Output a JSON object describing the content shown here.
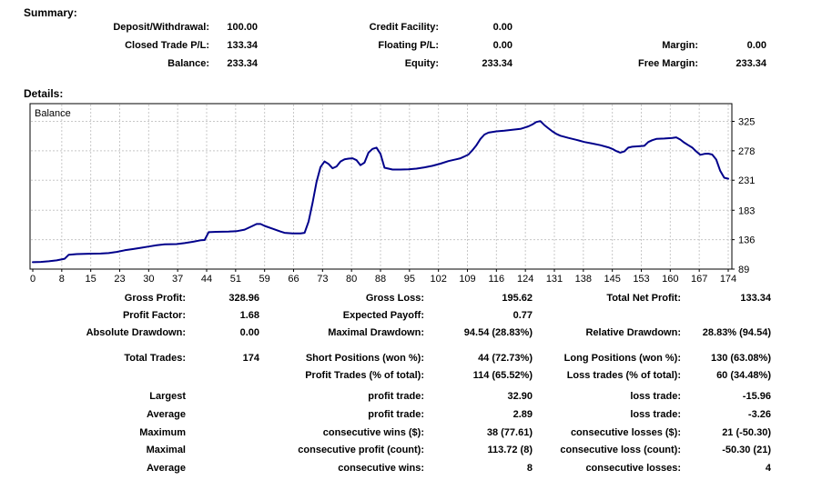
{
  "summary": {
    "heading": "Summary:",
    "rows": [
      {
        "l1": "Deposit/Withdrawal:",
        "v1": "100.00",
        "l2": "Credit Facility:",
        "v2": "0.00",
        "l3": "",
        "v3": ""
      },
      {
        "l1": "Closed Trade P/L:",
        "v1": "133.34",
        "l2": "Floating P/L:",
        "v2": "0.00",
        "l3": "Margin:",
        "v3": "0.00"
      },
      {
        "l1": "Balance:",
        "v1": "233.34",
        "l2": "Equity:",
        "v2": "233.34",
        "l3": "Free Margin:",
        "v3": "233.34"
      }
    ]
  },
  "details": {
    "heading": "Details:",
    "rows": [
      {
        "l1": "Gross Profit:",
        "v1": "328.96",
        "l2": "Gross Loss:",
        "v2": "195.62",
        "l3": "Total Net Profit:",
        "v3": "133.34"
      },
      {
        "l1": "Profit Factor:",
        "v1": "1.68",
        "l2": "Expected Payoff:",
        "v2": "0.77",
        "l3": "",
        "v3": ""
      },
      {
        "l1": "Absolute Drawdown:",
        "v1": "0.00",
        "l2": "Maximal Drawdown:",
        "v2": "94.54 (28.83%)",
        "l3": "Relative Drawdown:",
        "v3": "28.83% (94.54)"
      },
      {
        "l1": "Total Trades:",
        "v1": "174",
        "l2": "Short Positions (won %):",
        "v2": "44 (72.73%)",
        "l3": "Long Positions (won %):",
        "v3": "130 (63.08%)"
      },
      {
        "l1": "",
        "v1": "",
        "l2": "Profit Trades (% of total):",
        "v2": "114 (65.52%)",
        "l3": "Loss trades (% of total):",
        "v3": "60 (34.48%)"
      },
      {
        "l1": "Largest",
        "v1": "",
        "l2": "profit trade:",
        "v2": "32.90",
        "l3": "loss trade:",
        "v3": "-15.96"
      },
      {
        "l1": "Average",
        "v1": "",
        "l2": "profit trade:",
        "v2": "2.89",
        "l3": "loss trade:",
        "v3": "-3.26"
      },
      {
        "l1": "Maximum",
        "v1": "",
        "l2": "consecutive wins ($):",
        "v2": "38 (77.61)",
        "l3": "consecutive losses ($):",
        "v3": "21 (-50.30)"
      },
      {
        "l1": "Maximal",
        "v1": "",
        "l2": "consecutive profit (count):",
        "v2": "113.72 (8)",
        "l3": "consecutive loss (count):",
        "v3": "-50.30 (21)"
      },
      {
        "l1": "Average",
        "v1": "",
        "l2": "consecutive wins:",
        "v2": "8",
        "l3": "consecutive losses:",
        "v3": "4"
      }
    ]
  },
  "chart_data": {
    "type": "line",
    "title": "Balance",
    "xlabel": "",
    "ylabel": "",
    "legend_position": "top-left-inside",
    "grid": "dashed",
    "x_range": [
      0,
      174
    ],
    "y_range": [
      89,
      352
    ],
    "y_axis_side": "right",
    "x_tick_labels": [
      "0",
      "8",
      "15",
      "23",
      "30",
      "37",
      "44",
      "51",
      "59",
      "66",
      "73",
      "80",
      "88",
      "95",
      "102",
      "109",
      "116",
      "124",
      "131",
      "138",
      "145",
      "153",
      "160",
      "167",
      "174"
    ],
    "y_tick_labels": [
      "325",
      "278",
      "231",
      "183",
      "136",
      "89"
    ],
    "y_gridline_values": [
      325,
      278,
      231,
      183,
      136
    ],
    "line_color": "#00008B",
    "grid_color": "#c8c8c8",
    "border_color": "#000000",
    "series": [
      {
        "name": "Balance",
        "points": [
          [
            0,
            100
          ],
          [
            2,
            100.5
          ],
          [
            4,
            101.5
          ],
          [
            6,
            103
          ],
          [
            8,
            105.5
          ],
          [
            9,
            112
          ],
          [
            11,
            113
          ],
          [
            14,
            113.5
          ],
          [
            17,
            113.8
          ],
          [
            19,
            114.5
          ],
          [
            21,
            116.5
          ],
          [
            23,
            119
          ],
          [
            25,
            121
          ],
          [
            27,
            123
          ],
          [
            29,
            125
          ],
          [
            31,
            127
          ],
          [
            33,
            128.5
          ],
          [
            36,
            129
          ],
          [
            38,
            130.5
          ],
          [
            40,
            132.5
          ],
          [
            42,
            135
          ],
          [
            43,
            135.5
          ],
          [
            44,
            148
          ],
          [
            46,
            148.5
          ],
          [
            49,
            149
          ],
          [
            51,
            149.5
          ],
          [
            53,
            152
          ],
          [
            55,
            158
          ],
          [
            56,
            161
          ],
          [
            57,
            161
          ],
          [
            58,
            158
          ],
          [
            60,
            153.5
          ],
          [
            62,
            149
          ],
          [
            63,
            147
          ],
          [
            65,
            146
          ],
          [
            67,
            146
          ],
          [
            68,
            147
          ],
          [
            69,
            165
          ],
          [
            70,
            195
          ],
          [
            71,
            228
          ],
          [
            72,
            252
          ],
          [
            73,
            261
          ],
          [
            74,
            257
          ],
          [
            75,
            250
          ],
          [
            76,
            253
          ],
          [
            77,
            261
          ],
          [
            78,
            264.5
          ],
          [
            79,
            265.5
          ],
          [
            80,
            266
          ],
          [
            81,
            263
          ],
          [
            82,
            255
          ],
          [
            83,
            259
          ],
          [
            84,
            275
          ],
          [
            85,
            281
          ],
          [
            86,
            283
          ],
          [
            87,
            273
          ],
          [
            88,
            251
          ],
          [
            90,
            248
          ],
          [
            92,
            248
          ],
          [
            94,
            248.5
          ],
          [
            96,
            249.5
          ],
          [
            98,
            251.5
          ],
          [
            100,
            254
          ],
          [
            102,
            257.5
          ],
          [
            104,
            261.5
          ],
          [
            106,
            264.5
          ],
          [
            107,
            266
          ],
          [
            108,
            269
          ],
          [
            109,
            272
          ],
          [
            110,
            279
          ],
          [
            111,
            287
          ],
          [
            112,
            297
          ],
          [
            113,
            304
          ],
          [
            114,
            307
          ],
          [
            116,
            309
          ],
          [
            118,
            310
          ],
          [
            120,
            311.5
          ],
          [
            122,
            313
          ],
          [
            123,
            315
          ],
          [
            124,
            317
          ],
          [
            125,
            320
          ],
          [
            126,
            324
          ],
          [
            127,
            325.5
          ],
          [
            128,
            319
          ],
          [
            129,
            314
          ],
          [
            130,
            309
          ],
          [
            131,
            305
          ],
          [
            132,
            302
          ],
          [
            134,
            298.5
          ],
          [
            136,
            295.5
          ],
          [
            138,
            292
          ],
          [
            140,
            289.5
          ],
          [
            142,
            287
          ],
          [
            144,
            283.5
          ],
          [
            145,
            281
          ],
          [
            146,
            277.5
          ],
          [
            147,
            275
          ],
          [
            148,
            277
          ],
          [
            149,
            283
          ],
          [
            150,
            284.5
          ],
          [
            152,
            285.5
          ],
          [
            153,
            286
          ],
          [
            154,
            292
          ],
          [
            155,
            295
          ],
          [
            156,
            297
          ],
          [
            158,
            297.5
          ],
          [
            160,
            298.5
          ],
          [
            161,
            299.5
          ],
          [
            162,
            296
          ],
          [
            163,
            291
          ],
          [
            164,
            287
          ],
          [
            165,
            283
          ],
          [
            166,
            277
          ],
          [
            167,
            271.5
          ],
          [
            168,
            273
          ],
          [
            169,
            273.5
          ],
          [
            170,
            272
          ],
          [
            171,
            264
          ],
          [
            172,
            246
          ],
          [
            173,
            235
          ],
          [
            174,
            233.34
          ]
        ]
      }
    ]
  }
}
